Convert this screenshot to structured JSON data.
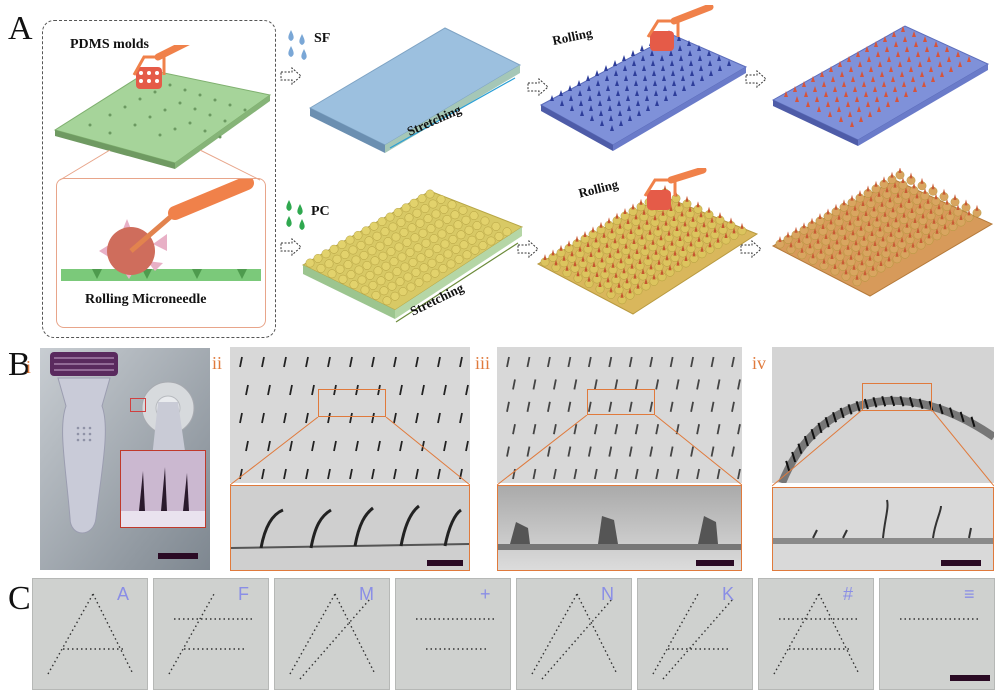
{
  "panel_a": {
    "letter": "A",
    "inset_title": "PDMS molds",
    "inset_caption": "Rolling Microneedle",
    "row1_liquid": "SF",
    "row2_liquid": "PC",
    "row1_roll": "Rolling",
    "row2_roll": "Rolling",
    "row1_stretch": "Stretching",
    "row2_stretch": "Stretching",
    "colors": {
      "sf_drop": "#7aa7d6",
      "pc_drop": "#2fa84f",
      "mold_green": "#9fd29a",
      "roller_orange": "#f0814a"
    }
  },
  "panel_b": {
    "letter": "B",
    "subpanels": [
      "i",
      "ii",
      "iii",
      "iv"
    ]
  },
  "panel_c": {
    "letter": "C",
    "tiles": [
      "A",
      "F",
      "M",
      "+",
      "N",
      "K",
      "#",
      "≡"
    ]
  }
}
